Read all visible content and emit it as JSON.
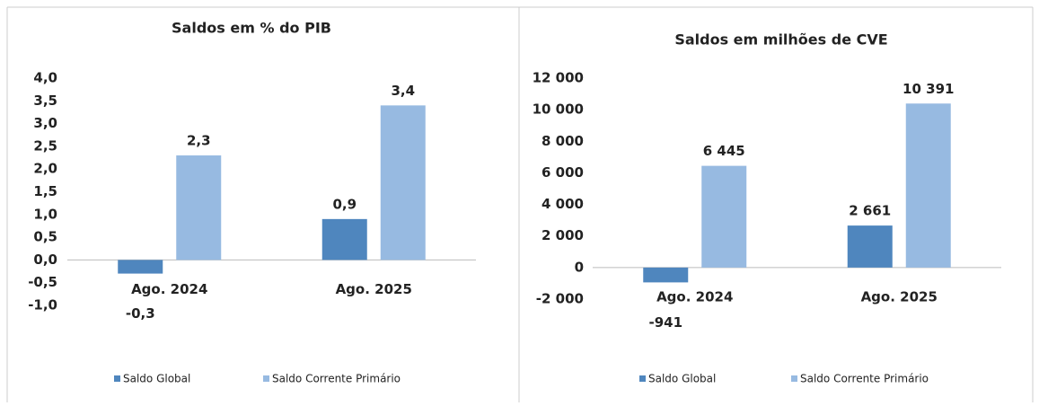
{
  "chart_data": [
    {
      "type": "bar",
      "title": "Saldos em % do PIB",
      "categories": [
        "Ago. 2024",
        "Ago. 2025"
      ],
      "series": [
        {
          "name": "Saldo Global",
          "color": "#4f86be",
          "values": [
            -0.3,
            0.9
          ],
          "value_labels": [
            "-0,3",
            "0,9"
          ]
        },
        {
          "name": "Saldo Corrente Primário",
          "color": "#97bae1",
          "values": [
            2.3,
            3.4
          ],
          "value_labels": [
            "2,3",
            "3,4"
          ]
        }
      ],
      "ylim": [
        -1,
        4
      ],
      "yticks": [
        {
          "value": -1,
          "label": "-1,0"
        },
        {
          "value": -0.5,
          "label": "-0,5"
        },
        {
          "value": 0,
          "label": "0,0"
        },
        {
          "value": 0.5,
          "label": "0,5"
        },
        {
          "value": 1,
          "label": "1,0"
        },
        {
          "value": 1.5,
          "label": "1,5"
        },
        {
          "value": 2,
          "label": "2,0"
        },
        {
          "value": 2.5,
          "label": "2,5"
        },
        {
          "value": 3,
          "label": "3,0"
        },
        {
          "value": 3.5,
          "label": "3,5"
        },
        {
          "value": 4,
          "label": "4,0"
        }
      ],
      "grid": false,
      "legend": "bottom"
    },
    {
      "type": "bar",
      "title": "Saldos em milhões de CVE",
      "categories": [
        "Ago. 2024",
        "Ago. 2025"
      ],
      "series": [
        {
          "name": "Saldo Global",
          "color": "#4f86be",
          "values": [
            -941,
            2661
          ],
          "value_labels": [
            "-941",
            "2 661"
          ]
        },
        {
          "name": "Saldo Corrente Primário",
          "color": "#97bae1",
          "values": [
            6445,
            10391
          ],
          "value_labels": [
            "6 445",
            "10 391"
          ]
        }
      ],
      "ylim": [
        -2000,
        12000
      ],
      "yticks": [
        {
          "value": -2000,
          "label": "-2 000"
        },
        0,
        {
          "value": 2000,
          "label": "2 000"
        },
        {
          "value": 4000,
          "label": "4 000"
        },
        {
          "value": 6000,
          "label": "6 000"
        },
        {
          "value": 8000,
          "label": "8 000"
        },
        {
          "value": 10000,
          "label": "10 000"
        },
        {
          "value": 12000,
          "label": "12 000"
        }
      ],
      "grid": false,
      "legend": "bottom"
    }
  ]
}
